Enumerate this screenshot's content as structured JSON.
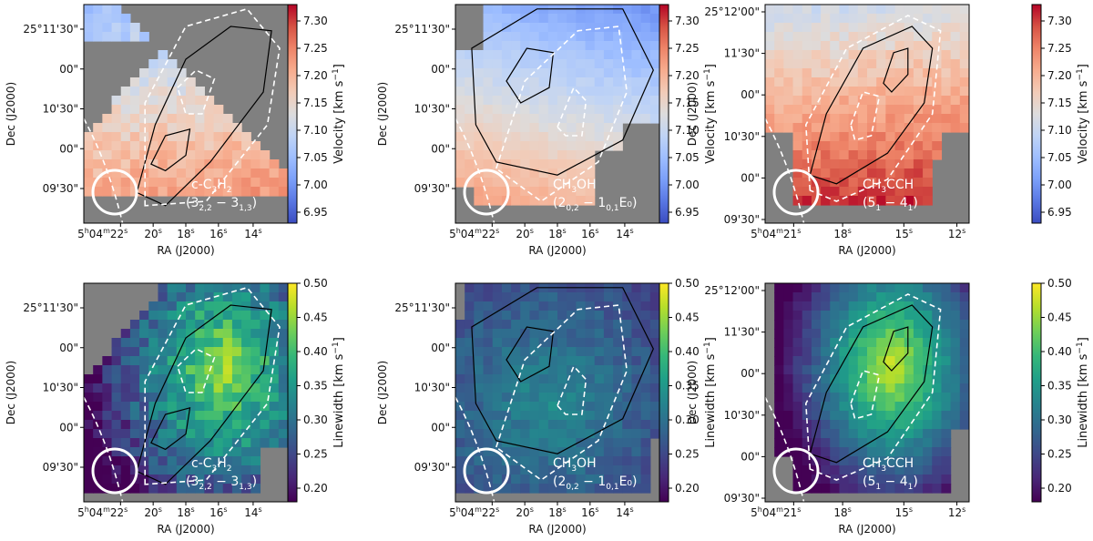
{
  "colors": {
    "coolwarm": [
      "#3b4cc0",
      "#5977e3",
      "#7b9ff9",
      "#9ebeff",
      "#c0d4f5",
      "#dddcdc",
      "#f2cbb7",
      "#f7ac8e",
      "#ee8468",
      "#d65244",
      "#b40426"
    ],
    "viridis": [
      "#440154",
      "#482878",
      "#3e4989",
      "#31688e",
      "#26828e",
      "#1f9e89",
      "#35b779",
      "#6ece58",
      "#b5de2b",
      "#fde725"
    ],
    "blank": "#808080"
  },
  "chart_data": [
    {
      "id": "p1",
      "type": "heatmap",
      "quantity": "velocity",
      "colormap": "coolwarm",
      "colorbar_label": "Velocity  [km s",
      "colorbar_unit_exp": "−1",
      "colorbar_unit_close": "]",
      "vlim": [
        6.93,
        7.33
      ],
      "colorbar_ticks": [
        "6.95",
        "7.00",
        "7.05",
        "7.10",
        "7.15",
        "7.20",
        "7.25",
        "7.30"
      ],
      "mol_line1": "c-C",
      "mol_sub1": "3",
      "mol_mid": "H",
      "mol_sub2": "2",
      "mol_line2": "(3",
      "mol_sub3": "2,2",
      "mol_dash": " − 3",
      "mol_sub4": "1,3",
      "mol_end": ")",
      "xlabel": "RA (J2000)",
      "ylabel": "Dec (J2000)",
      "xticks": [
        "5h04m22s",
        "20s",
        "18s",
        "16s",
        "14s"
      ],
      "yticks": [
        "25°11'30\"",
        "00\"",
        "10'30\"",
        "00\"",
        "09'30\""
      ]
    },
    {
      "id": "p2",
      "type": "heatmap",
      "quantity": "velocity",
      "colormap": "coolwarm",
      "colorbar_label": "Velocity  [km s",
      "colorbar_unit_exp": "−1",
      "colorbar_unit_close": "]",
      "vlim": [
        6.93,
        7.33
      ],
      "colorbar_ticks": [
        "6.95",
        "7.00",
        "7.05",
        "7.10",
        "7.15",
        "7.20",
        "7.25",
        "7.30"
      ],
      "mol_line1": "CH",
      "mol_sub1": "3",
      "mol_mid": "OH",
      "mol_sub2": "",
      "mol_line2": "(2",
      "mol_sub3": "0,2",
      "mol_dash": " − 1",
      "mol_sub4": "0,1",
      "mol_end": "E₀)",
      "xlabel": "RA (J2000)",
      "ylabel": "Dec (J2000)",
      "xticks": [
        "5h04m22s",
        "20s",
        "18s",
        "16s",
        "14s"
      ],
      "yticks": [
        "25°11'30\"",
        "00\"",
        "10'30\"",
        "00\"",
        "09'30\""
      ]
    },
    {
      "id": "p3",
      "type": "heatmap",
      "quantity": "velocity",
      "colormap": "coolwarm",
      "colorbar_label": "Velocity  [km s",
      "colorbar_unit_exp": "−1",
      "colorbar_unit_close": "]",
      "vlim": [
        6.93,
        7.33
      ],
      "colorbar_ticks": [
        "6.95",
        "7.00",
        "7.05",
        "7.10",
        "7.15",
        "7.20",
        "7.25",
        "7.30"
      ],
      "mol_line1": "CH",
      "mol_sub1": "3",
      "mol_mid": "CCH",
      "mol_sub2": "",
      "mol_line2": "(5",
      "mol_sub3": "1",
      "mol_dash": " − 4",
      "mol_sub4": "1",
      "mol_end": ")",
      "xlabel": "RA (J2000)",
      "ylabel": "Dec (J2000)",
      "xticks": [
        "5h04m21s",
        "18s",
        "15s",
        "12s"
      ],
      "yticks": [
        "25°12'00\"",
        "11'30\"",
        "00\"",
        "10'30\"",
        "00\"",
        "09'30\""
      ]
    },
    {
      "id": "p4",
      "type": "heatmap",
      "quantity": "linewidth",
      "colormap": "viridis",
      "colorbar_label": "Linewidth  [km s",
      "colorbar_unit_exp": "−1",
      "colorbar_unit_close": "]",
      "vlim": [
        0.18,
        0.5
      ],
      "colorbar_ticks": [
        "0.20",
        "0.25",
        "0.30",
        "0.35",
        "0.40",
        "0.45",
        "0.50"
      ],
      "mol_line1": "c-C",
      "mol_sub1": "3",
      "mol_mid": "H",
      "mol_sub2": "2",
      "mol_line2": "(3",
      "mol_sub3": "2,2",
      "mol_dash": " − 3",
      "mol_sub4": "1,3",
      "mol_end": ")",
      "xlabel": "RA (J2000)",
      "ylabel": "Dec (J2000)",
      "xticks": [
        "5h04m22s",
        "20s",
        "18s",
        "16s",
        "14s"
      ],
      "yticks": [
        "25°11'30\"",
        "00\"",
        "10'30\"",
        "00\"",
        "09'30\""
      ]
    },
    {
      "id": "p5",
      "type": "heatmap",
      "quantity": "linewidth",
      "colormap": "viridis",
      "colorbar_label": "Linewidth  [km s",
      "colorbar_unit_exp": "−1",
      "colorbar_unit_close": "]",
      "vlim": [
        0.18,
        0.5
      ],
      "colorbar_ticks": [
        "0.20",
        "0.25",
        "0.30",
        "0.35",
        "0.40",
        "0.45",
        "0.50"
      ],
      "mol_line1": "CH",
      "mol_sub1": "3",
      "mol_mid": "OH",
      "mol_sub2": "",
      "mol_line2": "(2",
      "mol_sub3": "0,2",
      "mol_dash": " − 1",
      "mol_sub4": "0,1",
      "mol_end": "E₀)",
      "xlabel": "RA (J2000)",
      "ylabel": "Dec (J2000)",
      "xticks": [
        "5h04m22s",
        "20s",
        "18s",
        "16s",
        "14s"
      ],
      "yticks": [
        "25°11'30\"",
        "00\"",
        "10'30\"",
        "00\"",
        "09'30\""
      ]
    },
    {
      "id": "p6",
      "type": "heatmap",
      "quantity": "linewidth",
      "colormap": "viridis",
      "colorbar_label": "Linewidth  [km s",
      "colorbar_unit_exp": "−1",
      "colorbar_unit_close": "]",
      "vlim": [
        0.18,
        0.5
      ],
      "colorbar_ticks": [
        "0.20",
        "0.25",
        "0.30",
        "0.35",
        "0.40",
        "0.45",
        "0.50"
      ],
      "mol_line1": "CH",
      "mol_sub1": "3",
      "mol_mid": "CCH",
      "mol_sub2": "",
      "mol_line2": "(5",
      "mol_sub3": "1",
      "mol_dash": " − 4",
      "mol_sub4": "1",
      "mol_end": ")",
      "xlabel": "RA (J2000)",
      "ylabel": "Dec (J2000)",
      "xticks": [
        "5h04m21s",
        "18s",
        "15s",
        "12s"
      ],
      "yticks": [
        "25°12'00\"",
        "11'30\"",
        "00\"",
        "10'30\"",
        "00\"",
        "09'30\""
      ]
    }
  ]
}
